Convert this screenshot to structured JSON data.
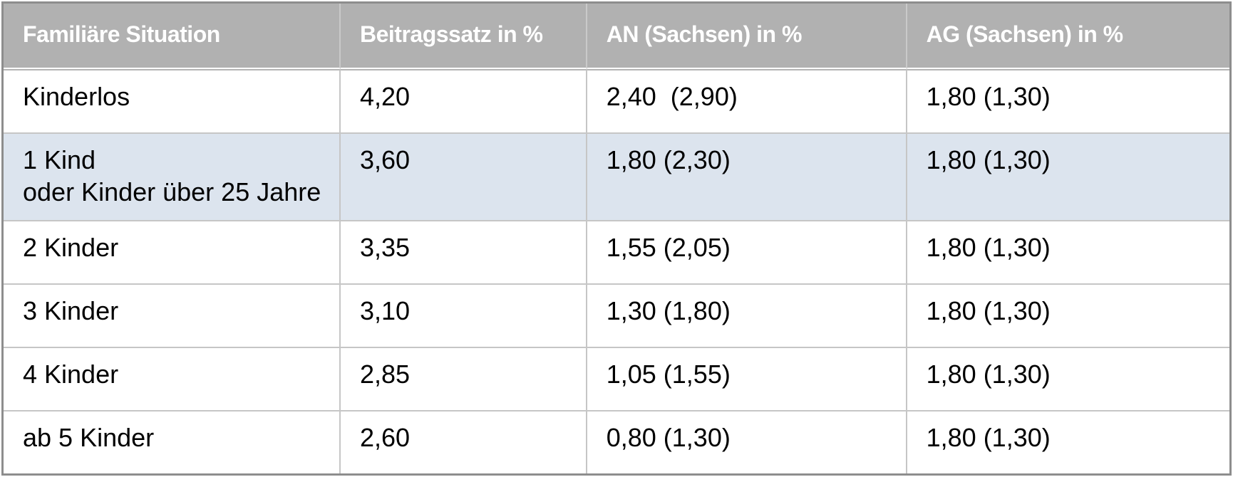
{
  "chart_data": {
    "type": "table",
    "columns": [
      "Familiäre Situation",
      "Beitragssatz in %",
      "AN (Sachsen) in %",
      "AG (Sachsen) in %"
    ],
    "rows": [
      {
        "cells": [
          "Kinderlos",
          "4,20",
          "2,40  (2,90)",
          "1,80 (1,30)"
        ],
        "highlighted": false
      },
      {
        "cells": [
          "1 Kind\noder Kinder über 25 Jahre",
          "3,60",
          "1,80 (2,30)",
          "1,80 (1,30)"
        ],
        "highlighted": true
      },
      {
        "cells": [
          "2 Kinder",
          "3,35",
          "1,55 (2,05)",
          "1,80 (1,30)"
        ],
        "highlighted": false
      },
      {
        "cells": [
          "3 Kinder",
          "3,10",
          "1,30 (1,80)",
          "1,80 (1,30)"
        ],
        "highlighted": false
      },
      {
        "cells": [
          "4 Kinder",
          "2,85",
          "1,05 (1,55)",
          "1,80 (1,30)"
        ],
        "highlighted": false
      },
      {
        "cells": [
          "ab 5 Kinder",
          "2,60",
          "0,80 (1,30)",
          "1,80 (1,30)"
        ],
        "highlighted": false
      }
    ],
    "layout_hints": {
      "header_position": "top",
      "grid": "on",
      "highlighted_row_index": 1
    }
  },
  "colors": {
    "header_background": "#b1b1b1",
    "header_text": "#ffffff",
    "outer_border": "#8d8d8d",
    "inner_border": "#c6c6c6",
    "highlight_row_background": "#dce4ee",
    "body_text": "#000000",
    "body_background": "#ffffff"
  }
}
